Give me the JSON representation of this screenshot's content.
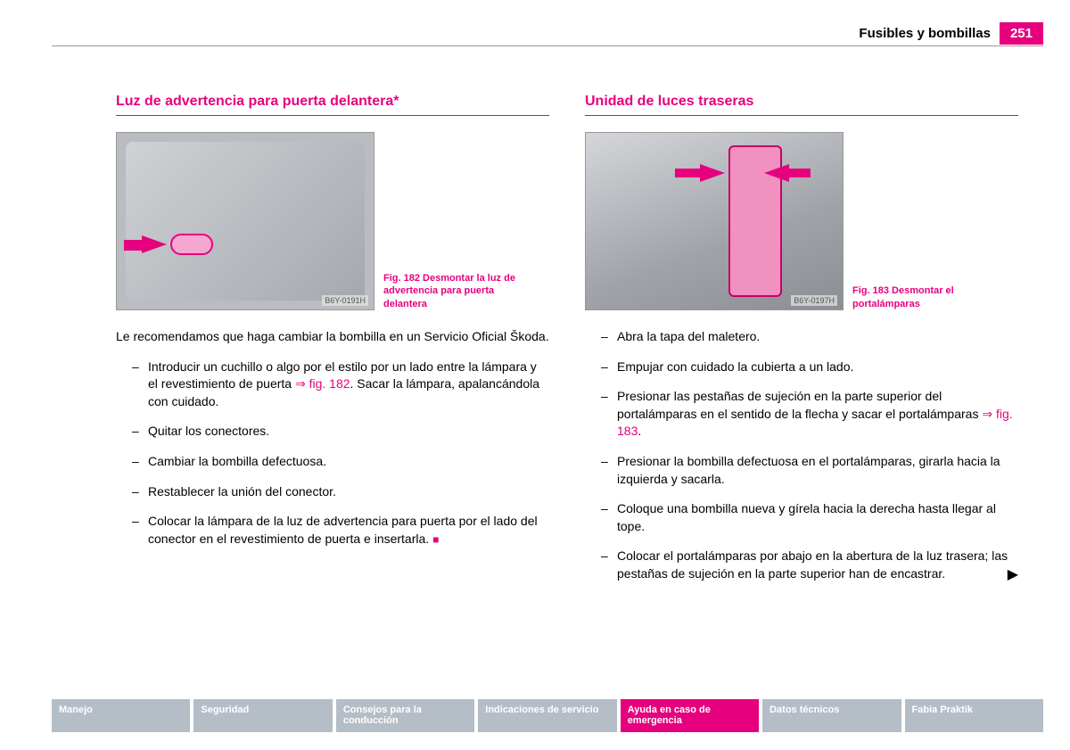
{
  "header": {
    "title": "Fusibles y bombillas",
    "page_number": "251"
  },
  "colors": {
    "accent": "#e6007e",
    "nav_inactive": "#b5bdc6",
    "nav_text": "#ffffff",
    "text": "#000000",
    "rule": "#999999",
    "figure_bg": "#b9bcc0"
  },
  "left": {
    "title": "Luz de advertencia para puerta delantera*",
    "figure": {
      "image_label": "B6Y-0191H",
      "caption": "Fig. 182  Desmontar la luz de advertencia para puerta delantera"
    },
    "intro": "Le recomendamos que haga cambiar la bombilla en un Servicio Oficial Škoda.",
    "steps": [
      {
        "text_pre": "Introducir un cuchillo o algo por el estilo por un lado entre la lámpara y el revestimiento de puerta ",
        "fig_ref": "⇒ fig. 182",
        "text_post": ". Sacar la lámpara, apalancándola con cuidado."
      },
      {
        "text_pre": "Quitar los conectores.",
        "fig_ref": "",
        "text_post": ""
      },
      {
        "text_pre": "Cambiar la bombilla defectuosa.",
        "fig_ref": "",
        "text_post": ""
      },
      {
        "text_pre": "Restablecer la unión del conector.",
        "fig_ref": "",
        "text_post": ""
      },
      {
        "text_pre": "Colocar la lámpara de la luz de advertencia para puerta por el lado del conector en el revestimiento de puerta e insertarla. ",
        "fig_ref": "",
        "text_post": "",
        "end_marker": "■"
      }
    ]
  },
  "right": {
    "title": "Unidad de luces traseras",
    "figure": {
      "image_label": "B6Y-0197H",
      "caption": "Fig. 183  Desmontar el portalámparas"
    },
    "steps": [
      {
        "text_pre": "Abra la tapa del maletero.",
        "fig_ref": "",
        "text_post": ""
      },
      {
        "text_pre": "Empujar con cuidado la cubierta a un lado.",
        "fig_ref": "",
        "text_post": ""
      },
      {
        "text_pre": "Presionar las pestañas de sujeción en la parte superior del portalámparas en el sentido de la flecha y sacar el portalámparas ",
        "fig_ref": "⇒ fig. 183",
        "text_post": "."
      },
      {
        "text_pre": "Presionar la bombilla defectuosa en el portalámparas, girarla hacia la izquierda y sacarla.",
        "fig_ref": "",
        "text_post": ""
      },
      {
        "text_pre": "Coloque una bombilla nueva y gírela hacia la derecha hasta llegar al tope.",
        "fig_ref": "",
        "text_post": ""
      },
      {
        "text_pre": "Colocar el portalámparas por abajo en la abertura de la luz trasera; las pestañas de sujeción en la parte superior han de encastrar.",
        "fig_ref": "",
        "text_post": "",
        "continue_marker": "▶"
      }
    ]
  },
  "footer_nav": [
    {
      "label": "Manejo",
      "active": false
    },
    {
      "label": "Seguridad",
      "active": false
    },
    {
      "label": "Consejos para la conducción",
      "active": false
    },
    {
      "label": "Indicaciones de servicio",
      "active": false
    },
    {
      "label": "Ayuda en caso de emergencia",
      "active": true
    },
    {
      "label": "Datos técnicos",
      "active": false
    },
    {
      "label": "Fabia Praktik",
      "active": false
    }
  ]
}
